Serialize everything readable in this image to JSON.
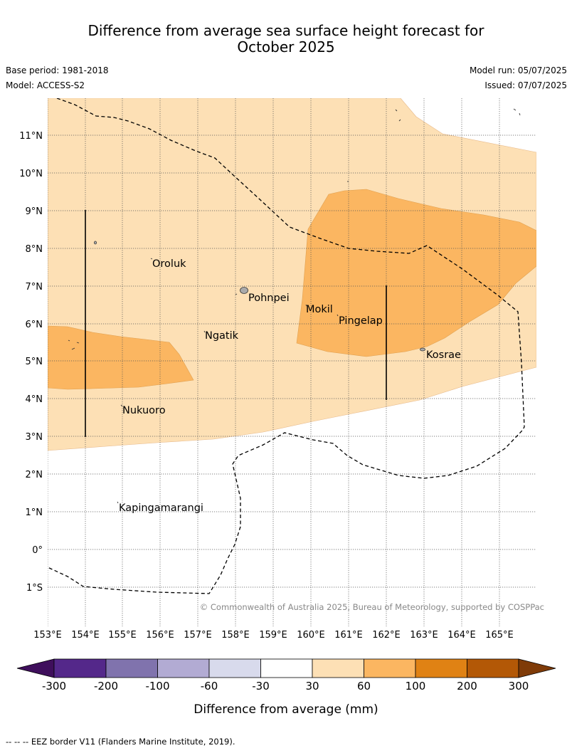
{
  "title": {
    "line1": "Difference from average sea surface height forecast for",
    "line2": "October 2025"
  },
  "meta": {
    "base_period": "Base period: 1981-2018",
    "model": "Model: ACCESS-S2",
    "model_run": "Model run: 05/07/2025",
    "issued": "Issued: 07/07/2025"
  },
  "map": {
    "lon_ticks": [
      "153°E",
      "154°E",
      "155°E",
      "156°E",
      "157°E",
      "158°E",
      "159°E",
      "160°E",
      "161°E",
      "162°E",
      "163°E",
      "164°E",
      "165°E"
    ],
    "lat_ticks": [
      "11°N",
      "10°N",
      "9°N",
      "8°N",
      "7°N",
      "6°N",
      "5°N",
      "4°N",
      "3°N",
      "2°N",
      "1°N",
      "0°",
      "1°S"
    ],
    "places": [
      {
        "name": "Oroluk"
      },
      {
        "name": "Pohnpei"
      },
      {
        "name": "Mokil"
      },
      {
        "name": "Pingelap"
      },
      {
        "name": "Ngatik"
      },
      {
        "name": "Kosrae"
      },
      {
        "name": "Nukuoro"
      },
      {
        "name": "Kapingamarangi"
      }
    ],
    "copyright": "© Commonwealth of Australia 2025, Bureau of Meteorology, supported by COSPPac",
    "colors": {
      "band_30_60": "#fde0b5",
      "band_60_100": "#fbb661",
      "coast": "#888888"
    }
  },
  "colorbar": {
    "ticks": [
      "-300",
      "-200",
      "-100",
      "-60",
      "-30",
      "30",
      "60",
      "100",
      "200",
      "300"
    ],
    "colors": [
      "#3f0f5c",
      "#54288a",
      "#8073ad",
      "#b2abd3",
      "#d8daec",
      "#ffffff",
      "#fde0b5",
      "#fbb661",
      "#e08214",
      "#b35806",
      "#7f3b08"
    ],
    "label": "Difference from average (mm)"
  },
  "footnote": "--  --  -- EEZ border V11 (Flanders Marine Institute, 2019)."
}
